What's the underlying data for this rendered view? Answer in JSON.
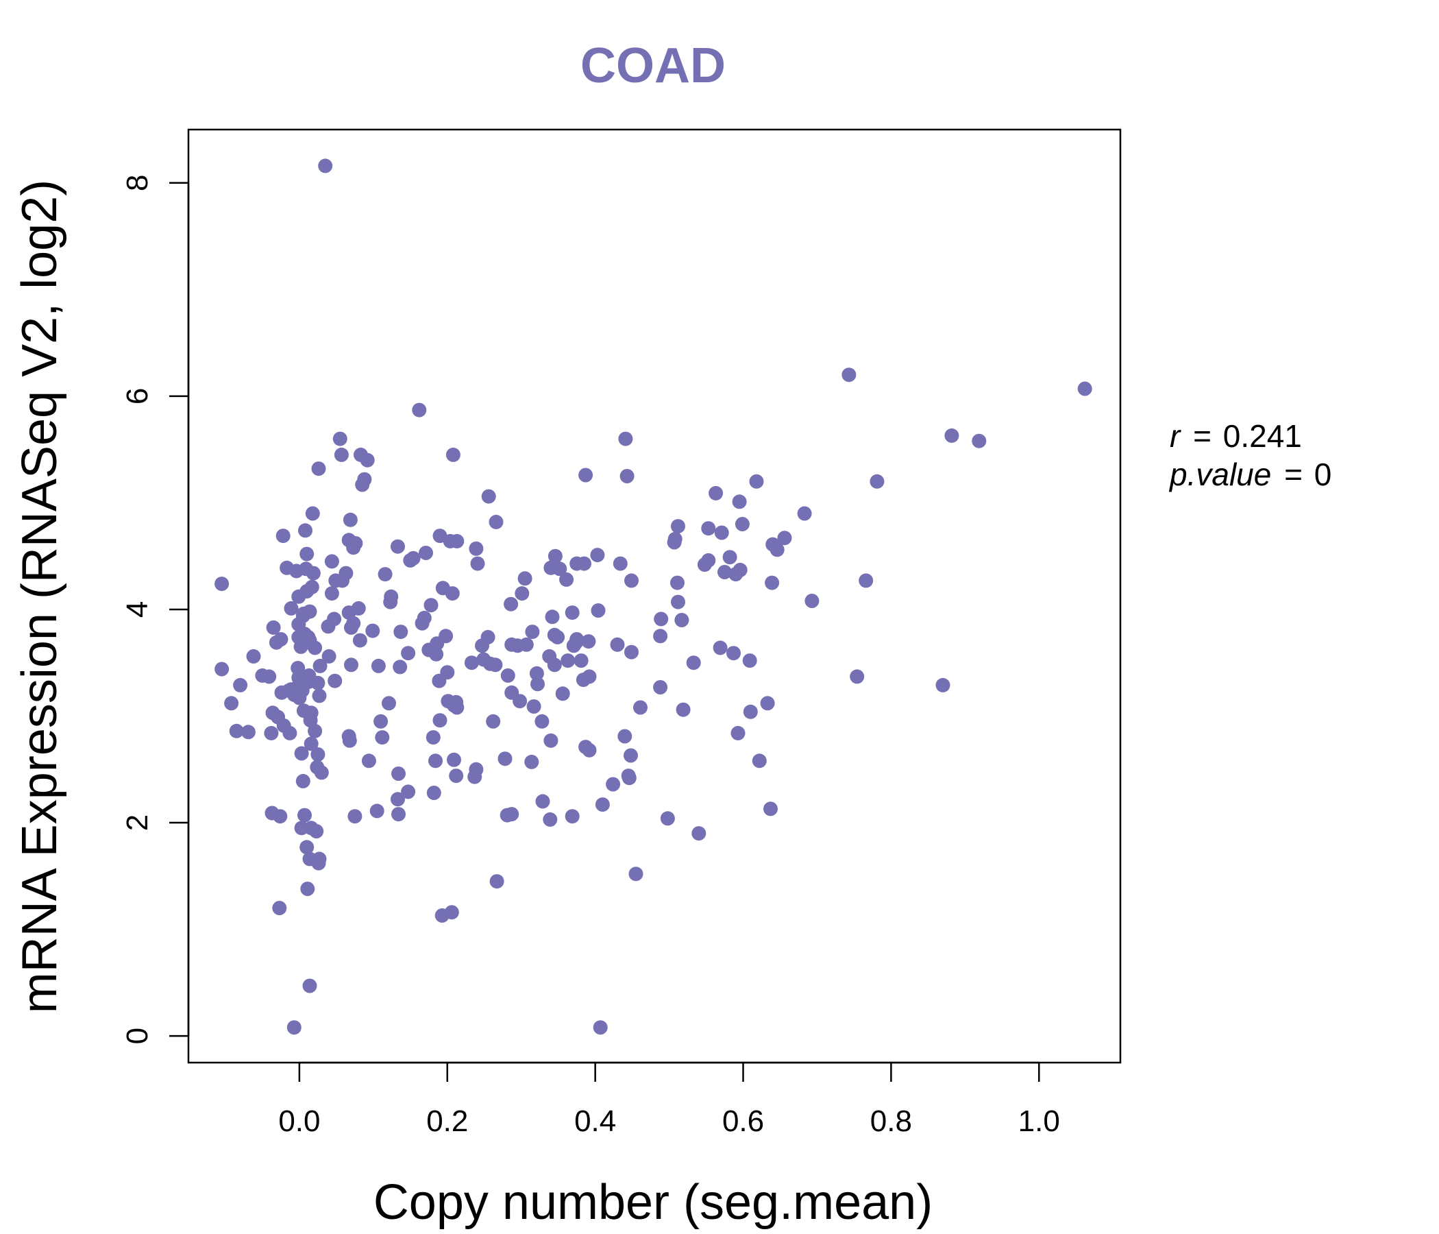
{
  "chart_data": {
    "type": "scatter",
    "title": "COAD",
    "xlabel": "Copy number (seg.mean)",
    "ylabel": "mRNA Expression (RNASeq V2, log2)",
    "xlim": [
      -0.15,
      1.11
    ],
    "ylim": [
      -0.25,
      8.5
    ],
    "xticks": [
      0.0,
      0.2,
      0.4,
      0.6,
      0.8,
      1.0
    ],
    "xtick_labels": [
      "0.0",
      "0.2",
      "0.4",
      "0.6",
      "0.8",
      "1.0"
    ],
    "yticks": [
      0,
      2,
      4,
      6,
      8
    ],
    "ytick_labels": [
      "0",
      "2",
      "4",
      "6",
      "8"
    ],
    "point_color": "#7570b3",
    "grid": false,
    "annotations": {
      "r_label": "r",
      "r_value": "0.241",
      "p_label": "p.value",
      "p_value": "0",
      "equals": "="
    },
    "points": [
      [
        0.035,
        8.16
      ],
      [
        0.743,
        6.2
      ],
      [
        1.062,
        6.07
      ],
      [
        0.162,
        5.87
      ],
      [
        0.882,
        5.63
      ],
      [
        0.919,
        5.58
      ],
      [
        0.441,
        5.6
      ],
      [
        0.055,
        5.6
      ],
      [
        0.208,
        5.45
      ],
      [
        0.057,
        5.45
      ],
      [
        0.083,
        5.45
      ],
      [
        0.092,
        5.4
      ],
      [
        0.026,
        5.32
      ],
      [
        0.387,
        5.26
      ],
      [
        0.443,
        5.25
      ],
      [
        0.088,
        5.22
      ],
      [
        0.085,
        5.17
      ],
      [
        0.618,
        5.2
      ],
      [
        0.781,
        5.2
      ],
      [
        0.563,
        5.09
      ],
      [
        0.256,
        5.06
      ],
      [
        0.595,
        5.01
      ],
      [
        0.018,
        4.9
      ],
      [
        0.683,
        4.9
      ],
      [
        0.069,
        4.84
      ],
      [
        0.266,
        4.82
      ],
      [
        0.599,
        4.8
      ],
      [
        0.512,
        4.78
      ],
      [
        0.553,
        4.76
      ],
      [
        0.008,
        4.74
      ],
      [
        0.571,
        4.72
      ],
      [
        -0.022,
        4.69
      ],
      [
        0.19,
        4.69
      ],
      [
        0.508,
        4.66
      ],
      [
        0.656,
        4.67
      ],
      [
        0.067,
        4.65
      ],
      [
        0.204,
        4.64
      ],
      [
        0.213,
        4.64
      ],
      [
        0.076,
        4.62
      ],
      [
        0.507,
        4.63
      ],
      [
        0.64,
        4.61
      ],
      [
        0.133,
        4.59
      ],
      [
        0.073,
        4.58
      ],
      [
        0.646,
        4.56
      ],
      [
        0.239,
        4.57
      ],
      [
        0.171,
        4.53
      ],
      [
        0.346,
        4.5
      ],
      [
        0.01,
        4.52
      ],
      [
        0.403,
        4.51
      ],
      [
        0.154,
        4.48
      ],
      [
        0.044,
        4.45
      ],
      [
        0.15,
        4.46
      ],
      [
        0.582,
        4.49
      ],
      [
        0.434,
        4.43
      ],
      [
        0.375,
        4.43
      ],
      [
        0.385,
        4.43
      ],
      [
        0.241,
        4.43
      ],
      [
        0.553,
        4.46
      ],
      [
        0.548,
        4.42
      ],
      [
        0.34,
        4.39
      ],
      [
        -0.017,
        4.39
      ],
      [
        -0.004,
        4.36
      ],
      [
        0.345,
        4.41
      ],
      [
        0.352,
        4.38
      ],
      [
        0.019,
        4.34
      ],
      [
        0.009,
        4.38
      ],
      [
        0.063,
        4.34
      ],
      [
        0.116,
        4.33
      ],
      [
        0.575,
        4.35
      ],
      [
        0.59,
        4.33
      ],
      [
        0.596,
        4.37
      ],
      [
        0.049,
        4.27
      ],
      [
        0.058,
        4.27
      ],
      [
        0.361,
        4.28
      ],
      [
        0.305,
        4.29
      ],
      [
        0.449,
        4.27
      ],
      [
        0.639,
        4.25
      ],
      [
        0.766,
        4.27
      ],
      [
        0.511,
        4.25
      ],
      [
        0.017,
        4.21
      ],
      [
        0.044,
        4.15
      ],
      [
        0.194,
        4.2
      ],
      [
        0.01,
        4.17
      ],
      [
        0.207,
        4.15
      ],
      [
        -0.001,
        4.12
      ],
      [
        -0.105,
        4.24
      ],
      [
        0.301,
        4.15
      ],
      [
        0.124,
        4.12
      ],
      [
        0.512,
        4.07
      ],
      [
        0.693,
        4.08
      ],
      [
        0.123,
        4.07
      ],
      [
        0.178,
        4.04
      ],
      [
        0.286,
        4.05
      ],
      [
        -0.011,
        4.01
      ],
      [
        0.08,
        4.01
      ],
      [
        0.067,
        3.97
      ],
      [
        0.014,
        3.98
      ],
      [
        0.404,
        3.99
      ],
      [
        0.369,
        3.97
      ],
      [
        0.006,
        3.96
      ],
      [
        0.005,
        3.94
      ],
      [
        0.047,
        3.91
      ],
      [
        0.517,
        3.9
      ],
      [
        0.342,
        3.93
      ],
      [
        0.169,
        3.92
      ],
      [
        0.489,
        3.91
      ],
      [
        0.073,
        3.87
      ],
      [
        0.166,
        3.87
      ],
      [
        -0.001,
        3.86
      ],
      [
        0.039,
        3.84
      ],
      [
        0.07,
        3.83
      ],
      [
        -0.035,
        3.83
      ],
      [
        0.315,
        3.79
      ],
      [
        0.099,
        3.8
      ],
      [
        0.137,
        3.79
      ],
      [
        0.007,
        3.77
      ],
      [
        0.198,
        3.75
      ],
      [
        0.255,
        3.74
      ],
      [
        0.345,
        3.76
      ],
      [
        0.012,
        3.74
      ],
      [
        0.349,
        3.74
      ],
      [
        0.375,
        3.72
      ],
      [
        -0.001,
        3.74
      ],
      [
        0.014,
        3.71
      ],
      [
        0.488,
        3.75
      ],
      [
        0.082,
        3.71
      ],
      [
        -0.025,
        3.72
      ],
      [
        0.391,
        3.7
      ],
      [
        0.374,
        3.69
      ],
      [
        -0.031,
        3.69
      ],
      [
        0.014,
        3.69
      ],
      [
        0.186,
        3.68
      ],
      [
        0.371,
        3.66
      ],
      [
        0.287,
        3.67
      ],
      [
        0.307,
        3.67
      ],
      [
        0.43,
        3.67
      ],
      [
        0.247,
        3.66
      ],
      [
        0.569,
        3.64
      ],
      [
        0.295,
        3.66
      ],
      [
        0.002,
        3.65
      ],
      [
        0.175,
        3.62
      ],
      [
        0.021,
        3.64
      ],
      [
        0.147,
        3.59
      ],
      [
        0.587,
        3.59
      ],
      [
        0.449,
        3.6
      ],
      [
        0.185,
        3.58
      ],
      [
        -0.062,
        3.56
      ],
      [
        0.04,
        3.56
      ],
      [
        0.338,
        3.56
      ],
      [
        0.363,
        3.52
      ],
      [
        0.381,
        3.52
      ],
      [
        0.233,
        3.5
      ],
      [
        0.249,
        3.53
      ],
      [
        0.258,
        3.49
      ],
      [
        0.345,
        3.48
      ],
      [
        0.533,
        3.5
      ],
      [
        0.609,
        3.52
      ],
      [
        0.07,
        3.48
      ],
      [
        0.265,
        3.48
      ],
      [
        0.028,
        3.47
      ],
      [
        0.107,
        3.47
      ],
      [
        0.136,
        3.46
      ],
      [
        -0.002,
        3.45
      ],
      [
        0.2,
        3.41
      ],
      [
        -0.105,
        3.44
      ],
      [
        0.321,
        3.4
      ],
      [
        0.282,
        3.38
      ],
      [
        -0.05,
        3.38
      ],
      [
        -0.041,
        3.37
      ],
      [
        0.013,
        3.38
      ],
      [
        0.392,
        3.37
      ],
      [
        -0.001,
        3.36
      ],
      [
        0.754,
        3.37
      ],
      [
        0.384,
        3.34
      ],
      [
        0.048,
        3.33
      ],
      [
        0.189,
        3.33
      ],
      [
        0.012,
        3.32
      ],
      [
        0.025,
        3.31
      ],
      [
        0.0,
        3.3
      ],
      [
        -0.08,
        3.29
      ],
      [
        0.322,
        3.3
      ],
      [
        0.488,
        3.27
      ],
      [
        0.87,
        3.29
      ],
      [
        -0.003,
        3.26
      ],
      [
        -0.011,
        3.25
      ],
      [
        -0.014,
        3.24
      ],
      [
        0.004,
        3.24
      ],
      [
        -0.024,
        3.22
      ],
      [
        0.287,
        3.22
      ],
      [
        0.356,
        3.21
      ],
      [
        -0.007,
        3.2
      ],
      [
        0.027,
        3.19
      ],
      [
        0.0,
        3.17
      ],
      [
        0.298,
        3.14
      ],
      [
        0.121,
        3.12
      ],
      [
        0.201,
        3.14
      ],
      [
        0.633,
        3.12
      ],
      [
        0.209,
        3.1
      ],
      [
        0.212,
        3.13
      ],
      [
        -0.092,
        3.12
      ],
      [
        0.317,
        3.09
      ],
      [
        0.213,
        3.08
      ],
      [
        0.461,
        3.08
      ],
      [
        0.519,
        3.06
      ],
      [
        0.006,
        3.05
      ],
      [
        -0.036,
        3.03
      ],
      [
        0.016,
        3.03
      ],
      [
        0.61,
        3.04
      ],
      [
        -0.029,
        2.99
      ],
      [
        0.015,
        2.96
      ],
      [
        0.11,
        2.95
      ],
      [
        0.19,
        2.96
      ],
      [
        0.262,
        2.95
      ],
      [
        0.328,
        2.95
      ],
      [
        -0.021,
        2.91
      ],
      [
        -0.085,
        2.86
      ],
      [
        -0.069,
        2.85
      ],
      [
        0.021,
        2.86
      ],
      [
        -0.013,
        2.84
      ],
      [
        -0.038,
        2.84
      ],
      [
        0.593,
        2.84
      ],
      [
        0.067,
        2.81
      ],
      [
        0.112,
        2.8
      ],
      [
        0.181,
        2.8
      ],
      [
        0.44,
        2.81
      ],
      [
        0.068,
        2.77
      ],
      [
        0.34,
        2.77
      ],
      [
        0.016,
        2.74
      ],
      [
        0.387,
        2.71
      ],
      [
        0.392,
        2.68
      ],
      [
        0.003,
        2.65
      ],
      [
        0.025,
        2.64
      ],
      [
        0.448,
        2.63
      ],
      [
        0.094,
        2.58
      ],
      [
        0.184,
        2.58
      ],
      [
        0.278,
        2.6
      ],
      [
        0.209,
        2.59
      ],
      [
        0.314,
        2.57
      ],
      [
        0.622,
        2.58
      ],
      [
        0.024,
        2.52
      ],
      [
        0.239,
        2.5
      ],
      [
        0.03,
        2.47
      ],
      [
        0.134,
        2.46
      ],
      [
        0.212,
        2.44
      ],
      [
        0.445,
        2.44
      ],
      [
        0.237,
        2.43
      ],
      [
        0.446,
        2.42
      ],
      [
        0.005,
        2.39
      ],
      [
        0.424,
        2.36
      ],
      [
        0.147,
        2.29
      ],
      [
        0.182,
        2.28
      ],
      [
        0.133,
        2.22
      ],
      [
        0.329,
        2.2
      ],
      [
        0.41,
        2.17
      ],
      [
        0.637,
        2.13
      ],
      [
        0.105,
        2.11
      ],
      [
        0.134,
        2.08
      ],
      [
        -0.037,
        2.09
      ],
      [
        0.287,
        2.08
      ],
      [
        0.075,
        2.06
      ],
      [
        0.281,
        2.07
      ],
      [
        0.369,
        2.06
      ],
      [
        -0.026,
        2.06
      ],
      [
        0.007,
        2.07
      ],
      [
        0.339,
        2.03
      ],
      [
        0.498,
        2.04
      ],
      [
        0.003,
        1.95
      ],
      [
        0.016,
        1.95
      ],
      [
        0.023,
        1.92
      ],
      [
        0.54,
        1.9
      ],
      [
        0.01,
        1.77
      ],
      [
        0.014,
        1.66
      ],
      [
        0.027,
        1.66
      ],
      [
        0.026,
        1.62
      ],
      [
        0.455,
        1.52
      ],
      [
        0.267,
        1.45
      ],
      [
        0.011,
        1.38
      ],
      [
        -0.027,
        1.2
      ],
      [
        0.206,
        1.16
      ],
      [
        0.193,
        1.13
      ],
      [
        0.014,
        0.47
      ],
      [
        -0.007,
        0.08
      ],
      [
        0.407,
        0.08
      ]
    ]
  }
}
